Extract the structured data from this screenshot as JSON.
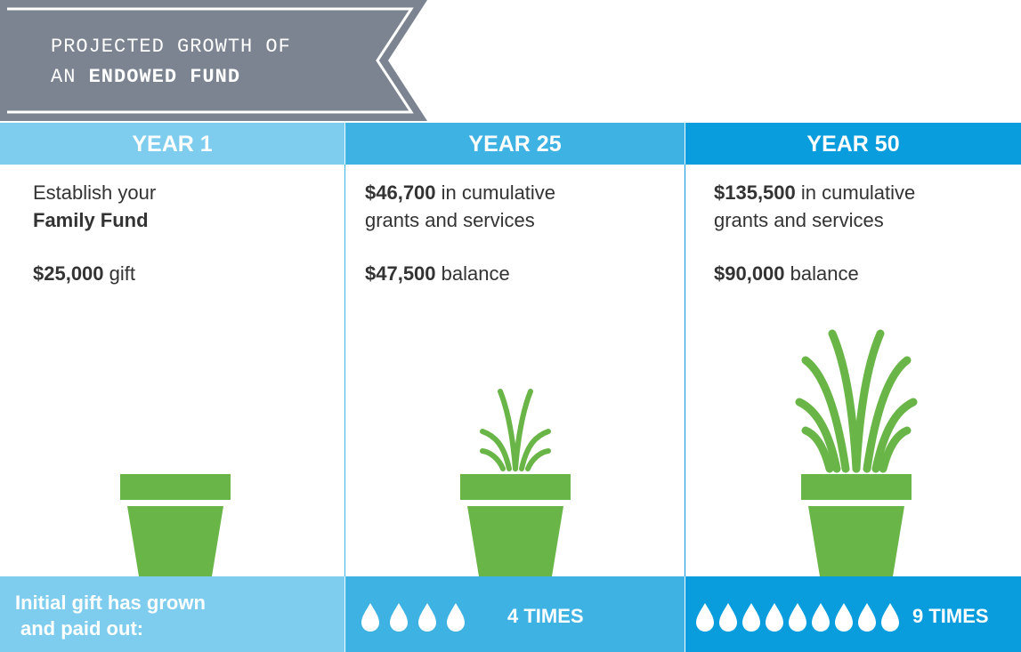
{
  "header": {
    "title_line1": "PROJECTED GROWTH OF",
    "title_line2_prefix": "AN",
    "title_line2_bold": "ENDOWED FUND"
  },
  "columns": [
    {
      "heading": "YEAR 1",
      "line1": "Establish your",
      "line2_bold": "Family Fund",
      "amount_bold": "$25,000",
      "amount_text": "gift"
    },
    {
      "heading": "YEAR 25",
      "grants_bold": "$46,700",
      "grants_text1": "in cumulative",
      "grants_text2": "grants and services",
      "balance_bold": "$47,500",
      "balance_text": "balance"
    },
    {
      "heading": "YEAR 50",
      "grants_bold": "$135,500",
      "grants_text1": "in cumulative",
      "grants_text2": "grants and services",
      "balance_bold": "$90,000",
      "balance_text": "balance"
    }
  ],
  "footer": {
    "label_line1": "Initial gift has grown",
    "label_line2": "and paid out:",
    "times_25": "4 TIMES",
    "times_50": "9 TIMES"
  }
}
